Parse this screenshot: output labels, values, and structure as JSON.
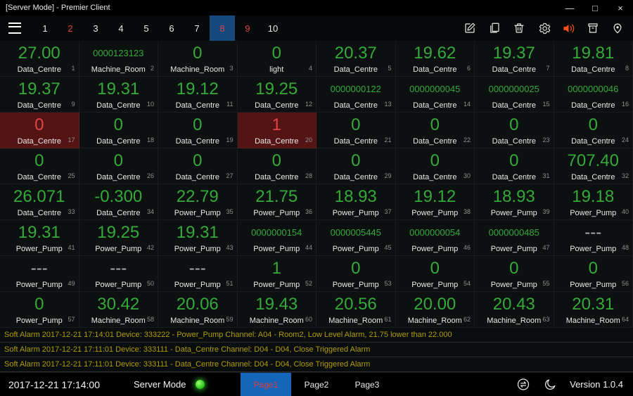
{
  "window": {
    "title": "[Server Mode] - Premier Client",
    "controls": {
      "minimize": "—",
      "maximize": "□",
      "close": "×"
    }
  },
  "colors": {
    "value_green": "#35a93a",
    "value_red": "#e04343",
    "alarm_cell_bg": "#541414",
    "alarm_text": "#b19c00",
    "selected_page_bg": "#15497e",
    "active_tab_bg": "#1467b8",
    "active_tab_text": "#e03a3a",
    "speaker_icon": "#ff4d17",
    "led_green": "#2ecc1e"
  },
  "toolbar": {
    "menu_icon": "hamburger-icon",
    "pages": [
      {
        "label": "1"
      },
      {
        "label": "2",
        "alert": true
      },
      {
        "label": "3"
      },
      {
        "label": "4"
      },
      {
        "label": "5"
      },
      {
        "label": "6"
      },
      {
        "label": "7"
      },
      {
        "label": "8",
        "alert": true,
        "selected": true
      },
      {
        "label": "9",
        "alert": true
      },
      {
        "label": "10"
      }
    ],
    "icons": [
      "edit-icon",
      "document-icon",
      "delete-icon",
      "settings-icon",
      "speaker-icon",
      "bin-icon",
      "location-icon"
    ]
  },
  "grid": {
    "cells": [
      {
        "index": 1,
        "value": "27.00",
        "label": "Data_Centre",
        "style": "g"
      },
      {
        "index": 2,
        "value": "0000123123",
        "label": "Machine_Room",
        "style": "gs"
      },
      {
        "index": 3,
        "value": "0",
        "label": "Machine_Room",
        "style": "g"
      },
      {
        "index": 4,
        "value": "0",
        "label": "light",
        "style": "g"
      },
      {
        "index": 5,
        "value": "20.37",
        "label": "Data_Centre",
        "style": "g"
      },
      {
        "index": 6,
        "value": "19.62",
        "label": "Data_Centre",
        "style": "g"
      },
      {
        "index": 7,
        "value": "19.37",
        "label": "Data_Centre",
        "style": "g"
      },
      {
        "index": 8,
        "value": "19.81",
        "label": "Data_Centre",
        "style": "g"
      },
      {
        "index": 9,
        "value": "19.37",
        "label": "Data_Centre",
        "style": "g"
      },
      {
        "index": 10,
        "value": "19.31",
        "label": "Data_Centre",
        "style": "g"
      },
      {
        "index": 11,
        "value": "19.12",
        "label": "Data_Centre",
        "style": "g"
      },
      {
        "index": 12,
        "value": "19.25",
        "label": "Data_Centre",
        "style": "g"
      },
      {
        "index": 13,
        "value": "0000000122",
        "label": "Data_Centre",
        "style": "gs"
      },
      {
        "index": 14,
        "value": "0000000045",
        "label": "Data_Centre",
        "style": "gs"
      },
      {
        "index": 15,
        "value": "0000000025",
        "label": "Data_Centre",
        "style": "gs"
      },
      {
        "index": 16,
        "value": "0000000046",
        "label": "Data_Centre",
        "style": "gs"
      },
      {
        "index": 17,
        "value": "0",
        "label": "Data_Centre",
        "style": "r",
        "alarm": true
      },
      {
        "index": 18,
        "value": "0",
        "label": "Data_Centre",
        "style": "g"
      },
      {
        "index": 19,
        "value": "0",
        "label": "Data_Centre",
        "style": "g"
      },
      {
        "index": 20,
        "value": "1",
        "label": "Data_Centre",
        "style": "r",
        "alarm": true
      },
      {
        "index": 21,
        "value": "0",
        "label": "Data_Centre",
        "style": "g"
      },
      {
        "index": 22,
        "value": "0",
        "label": "Data_Centre",
        "style": "g"
      },
      {
        "index": 23,
        "value": "0",
        "label": "Data_Centre",
        "style": "g"
      },
      {
        "index": 24,
        "value": "0",
        "label": "Data_Centre",
        "style": "g"
      },
      {
        "index": 25,
        "value": "0",
        "label": "Data_Centre",
        "style": "g"
      },
      {
        "index": 26,
        "value": "0",
        "label": "Data_Centre",
        "style": "g"
      },
      {
        "index": 27,
        "value": "0",
        "label": "Data_Centre",
        "style": "g"
      },
      {
        "index": 28,
        "value": "0",
        "label": "Data_Centre",
        "style": "g"
      },
      {
        "index": 29,
        "value": "0",
        "label": "Data_Centre",
        "style": "g"
      },
      {
        "index": 30,
        "value": "0",
        "label": "Data_Centre",
        "style": "g"
      },
      {
        "index": 31,
        "value": "0",
        "label": "Data_Centre",
        "style": "g"
      },
      {
        "index": 32,
        "value": "707.40",
        "label": "Data_Centre",
        "style": "g"
      },
      {
        "index": 33,
        "value": "26.071",
        "label": "Data_Centre",
        "style": "g"
      },
      {
        "index": 34,
        "value": "-0.300",
        "label": "Data_Centre",
        "style": "g"
      },
      {
        "index": 35,
        "value": "22.79",
        "label": "Power_Pump",
        "style": "g"
      },
      {
        "index": 36,
        "value": "21.75",
        "label": "Power_Pump",
        "style": "g"
      },
      {
        "index": 37,
        "value": "18.93",
        "label": "Power_Pump",
        "style": "g"
      },
      {
        "index": 38,
        "value": "19.12",
        "label": "Power_Pump",
        "style": "g"
      },
      {
        "index": 39,
        "value": "18.93",
        "label": "Power_Pump",
        "style": "g"
      },
      {
        "index": 40,
        "value": "19.18",
        "label": "Power_Pump",
        "style": "g"
      },
      {
        "index": 41,
        "value": "19.31",
        "label": "Power_Pump",
        "style": "g"
      },
      {
        "index": 42,
        "value": "19.25",
        "label": "Power_Pump",
        "style": "g"
      },
      {
        "index": 43,
        "value": "19.31",
        "label": "Power_Pump",
        "style": "g"
      },
      {
        "index": 44,
        "value": "0000000154",
        "label": "Power_Pump",
        "style": "gs"
      },
      {
        "index": 45,
        "value": "0000005445",
        "label": "Power_Pump",
        "style": "gs"
      },
      {
        "index": 46,
        "value": "0000000054",
        "label": "Power_Pump",
        "style": "gs"
      },
      {
        "index": 47,
        "value": "0000000485",
        "label": "Power_Pump",
        "style": "gs"
      },
      {
        "index": 48,
        "value": "---",
        "label": "Power_Pump",
        "style": "dash"
      },
      {
        "index": 49,
        "value": "---",
        "label": "Power_Pump",
        "style": "dash"
      },
      {
        "index": 50,
        "value": "---",
        "label": "Power_Pump",
        "style": "dash"
      },
      {
        "index": 51,
        "value": "---",
        "label": "Power_Pump",
        "style": "dash"
      },
      {
        "index": 52,
        "value": "1",
        "label": "Power_Pump",
        "style": "g"
      },
      {
        "index": 53,
        "value": "0",
        "label": "Power_Pump",
        "style": "g"
      },
      {
        "index": 54,
        "value": "0",
        "label": "Power_Pump",
        "style": "g"
      },
      {
        "index": 55,
        "value": "0",
        "label": "Power_Pump",
        "style": "g"
      },
      {
        "index": 56,
        "value": "0",
        "label": "Power_Pump",
        "style": "g"
      },
      {
        "index": 57,
        "value": "0",
        "label": "Power_Pump",
        "style": "g"
      },
      {
        "index": 58,
        "value": "30.42",
        "label": "Machine_Room",
        "style": "g"
      },
      {
        "index": 59,
        "value": "20.06",
        "label": "Machine_Room",
        "style": "g"
      },
      {
        "index": 60,
        "value": "19.43",
        "label": "Machine_Room",
        "style": "g"
      },
      {
        "index": 61,
        "value": "20.56",
        "label": "Machine_Room",
        "style": "g"
      },
      {
        "index": 62,
        "value": "20.00",
        "label": "Machine_Room",
        "style": "g"
      },
      {
        "index": 63,
        "value": "20.43",
        "label": "Machine_Room",
        "style": "g"
      },
      {
        "index": 64,
        "value": "20.31",
        "label": "Machine_Room",
        "style": "g"
      }
    ]
  },
  "alarms": [
    "Soft Alarm 2017-12-21 17:14:01 Device: 333222 - Power_Pump Channel: A04 - Room2, Low Level Alarm, 21.75 lower than 22.000",
    "Soft Alarm 2017-12-21 17:11:01 Device: 333111 - Data_Centre Channel: D04 - D04, Close Triggered Alarm",
    "Soft Alarm 2017-12-21 17:11:01 Device: 333111 - Data_Centre Channel: D04 - D04, Close Triggered Alarm"
  ],
  "statusbar": {
    "timestamp": "2017-12-21 17:14:00",
    "mode_label": "Server Mode",
    "tabs": [
      {
        "label": "Page1",
        "active": true
      },
      {
        "label": "Page2"
      },
      {
        "label": "Page3"
      }
    ],
    "icons": [
      "sync-icon",
      "moon-icon"
    ],
    "version": "Version 1.0.4"
  }
}
